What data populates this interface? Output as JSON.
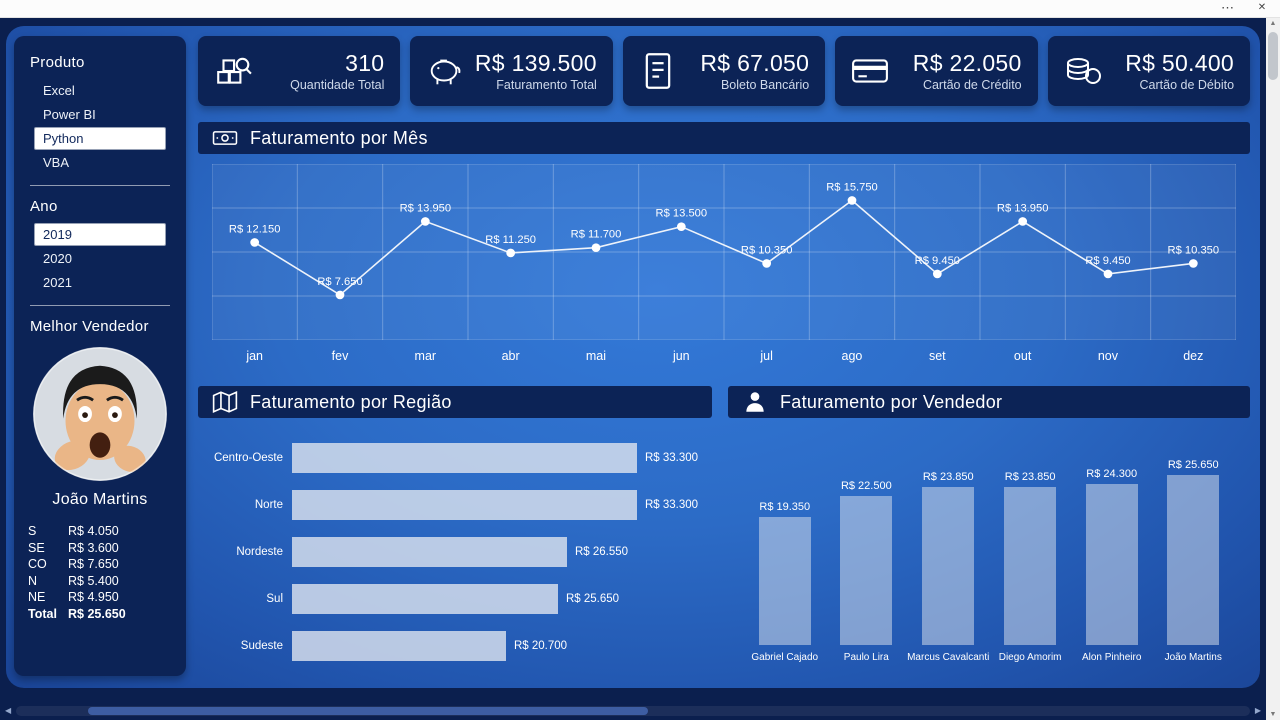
{
  "window": {
    "menu_icon": "⋯",
    "close_icon": "✕"
  },
  "scrollbars": {
    "up": "▲",
    "down": "▼",
    "left": "◀",
    "right": "▶"
  },
  "sidebar": {
    "produto": {
      "title": "Produto",
      "items": [
        {
          "label": "Excel",
          "selected": false
        },
        {
          "label": "Power BI",
          "selected": false
        },
        {
          "label": "Python",
          "selected": true
        },
        {
          "label": "VBA",
          "selected": false
        }
      ]
    },
    "ano": {
      "title": "Ano",
      "items": [
        {
          "label": "2019",
          "selected": true
        },
        {
          "label": "2020",
          "selected": false
        },
        {
          "label": "2021",
          "selected": false
        }
      ]
    },
    "melhor_vendedor": {
      "title": "Melhor Vendedor",
      "name": "João Martins",
      "rows": [
        {
          "label": "S",
          "value": "R$ 4.050",
          "bold": false
        },
        {
          "label": "SE",
          "value": "R$ 3.600",
          "bold": false
        },
        {
          "label": "CO",
          "value": "R$ 7.650",
          "bold": false
        },
        {
          "label": "N",
          "value": "R$ 5.400",
          "bold": false
        },
        {
          "label": "NE",
          "value": "R$ 4.950",
          "bold": false
        },
        {
          "label": "Total",
          "value": "R$ 25.650",
          "bold": true
        }
      ]
    }
  },
  "kpis": [
    {
      "icon": "quantity-icon",
      "value": "310",
      "label": "Quantidade Total"
    },
    {
      "icon": "piggy-bank-icon",
      "value": "R$ 139.500",
      "label": "Faturamento Total"
    },
    {
      "icon": "document-icon",
      "value": "R$ 67.050",
      "label": "Boleto Bancário"
    },
    {
      "icon": "credit-card-icon",
      "value": "R$ 22.050",
      "label": "Cartão de Crédito"
    },
    {
      "icon": "coins-icon",
      "value": "R$ 50.400",
      "label": "Cartão de Débito"
    }
  ],
  "chart_data": [
    {
      "type": "line",
      "title": "Faturamento por Mês",
      "categories": [
        "jan",
        "fev",
        "mar",
        "abr",
        "mai",
        "jun",
        "jul",
        "ago",
        "set",
        "out",
        "nov",
        "dez"
      ],
      "values": [
        12150,
        7650,
        13950,
        11250,
        11700,
        13500,
        10350,
        15750,
        9450,
        13950,
        9450,
        10350
      ],
      "labels": [
        "R$ 12.150",
        "R$ 7.650",
        "R$ 13.950",
        "R$ 11.250",
        "R$ 11.700",
        "R$ 13.500",
        "R$ 10.350",
        "R$ 15.750",
        "R$ 9.450",
        "R$ 13.950",
        "R$ 9.450",
        "R$ 10.350"
      ],
      "ylim": [
        5500,
        17500
      ],
      "grid": true,
      "legend": "none"
    },
    {
      "type": "bar",
      "orientation": "horizontal",
      "title": "Faturamento por Região",
      "categories": [
        "Centro-Oeste",
        "Norte",
        "Nordeste",
        "Sul",
        "Sudeste"
      ],
      "values": [
        33300,
        33300,
        26550,
        25650,
        20700
      ],
      "labels": [
        "R$ 33.300",
        "R$ 33.300",
        "R$ 26.550",
        "R$ 25.650",
        "R$ 20.700"
      ],
      "grid": false,
      "legend": "none"
    },
    {
      "type": "bar",
      "orientation": "vertical",
      "title": "Faturamento por Vendedor",
      "categories": [
        "Gabriel Cajado",
        "Paulo Lira",
        "Marcus Cavalcanti",
        "Diego Amorim",
        "Alon Pinheiro",
        "João Martins"
      ],
      "values": [
        19350,
        22500,
        23850,
        23850,
        24300,
        25650
      ],
      "labels": [
        "R$ 19.350",
        "R$ 22.500",
        "R$ 23.850",
        "R$ 23.850",
        "R$ 24.300",
        "R$ 25.650"
      ],
      "grid": false,
      "legend": "none"
    }
  ]
}
